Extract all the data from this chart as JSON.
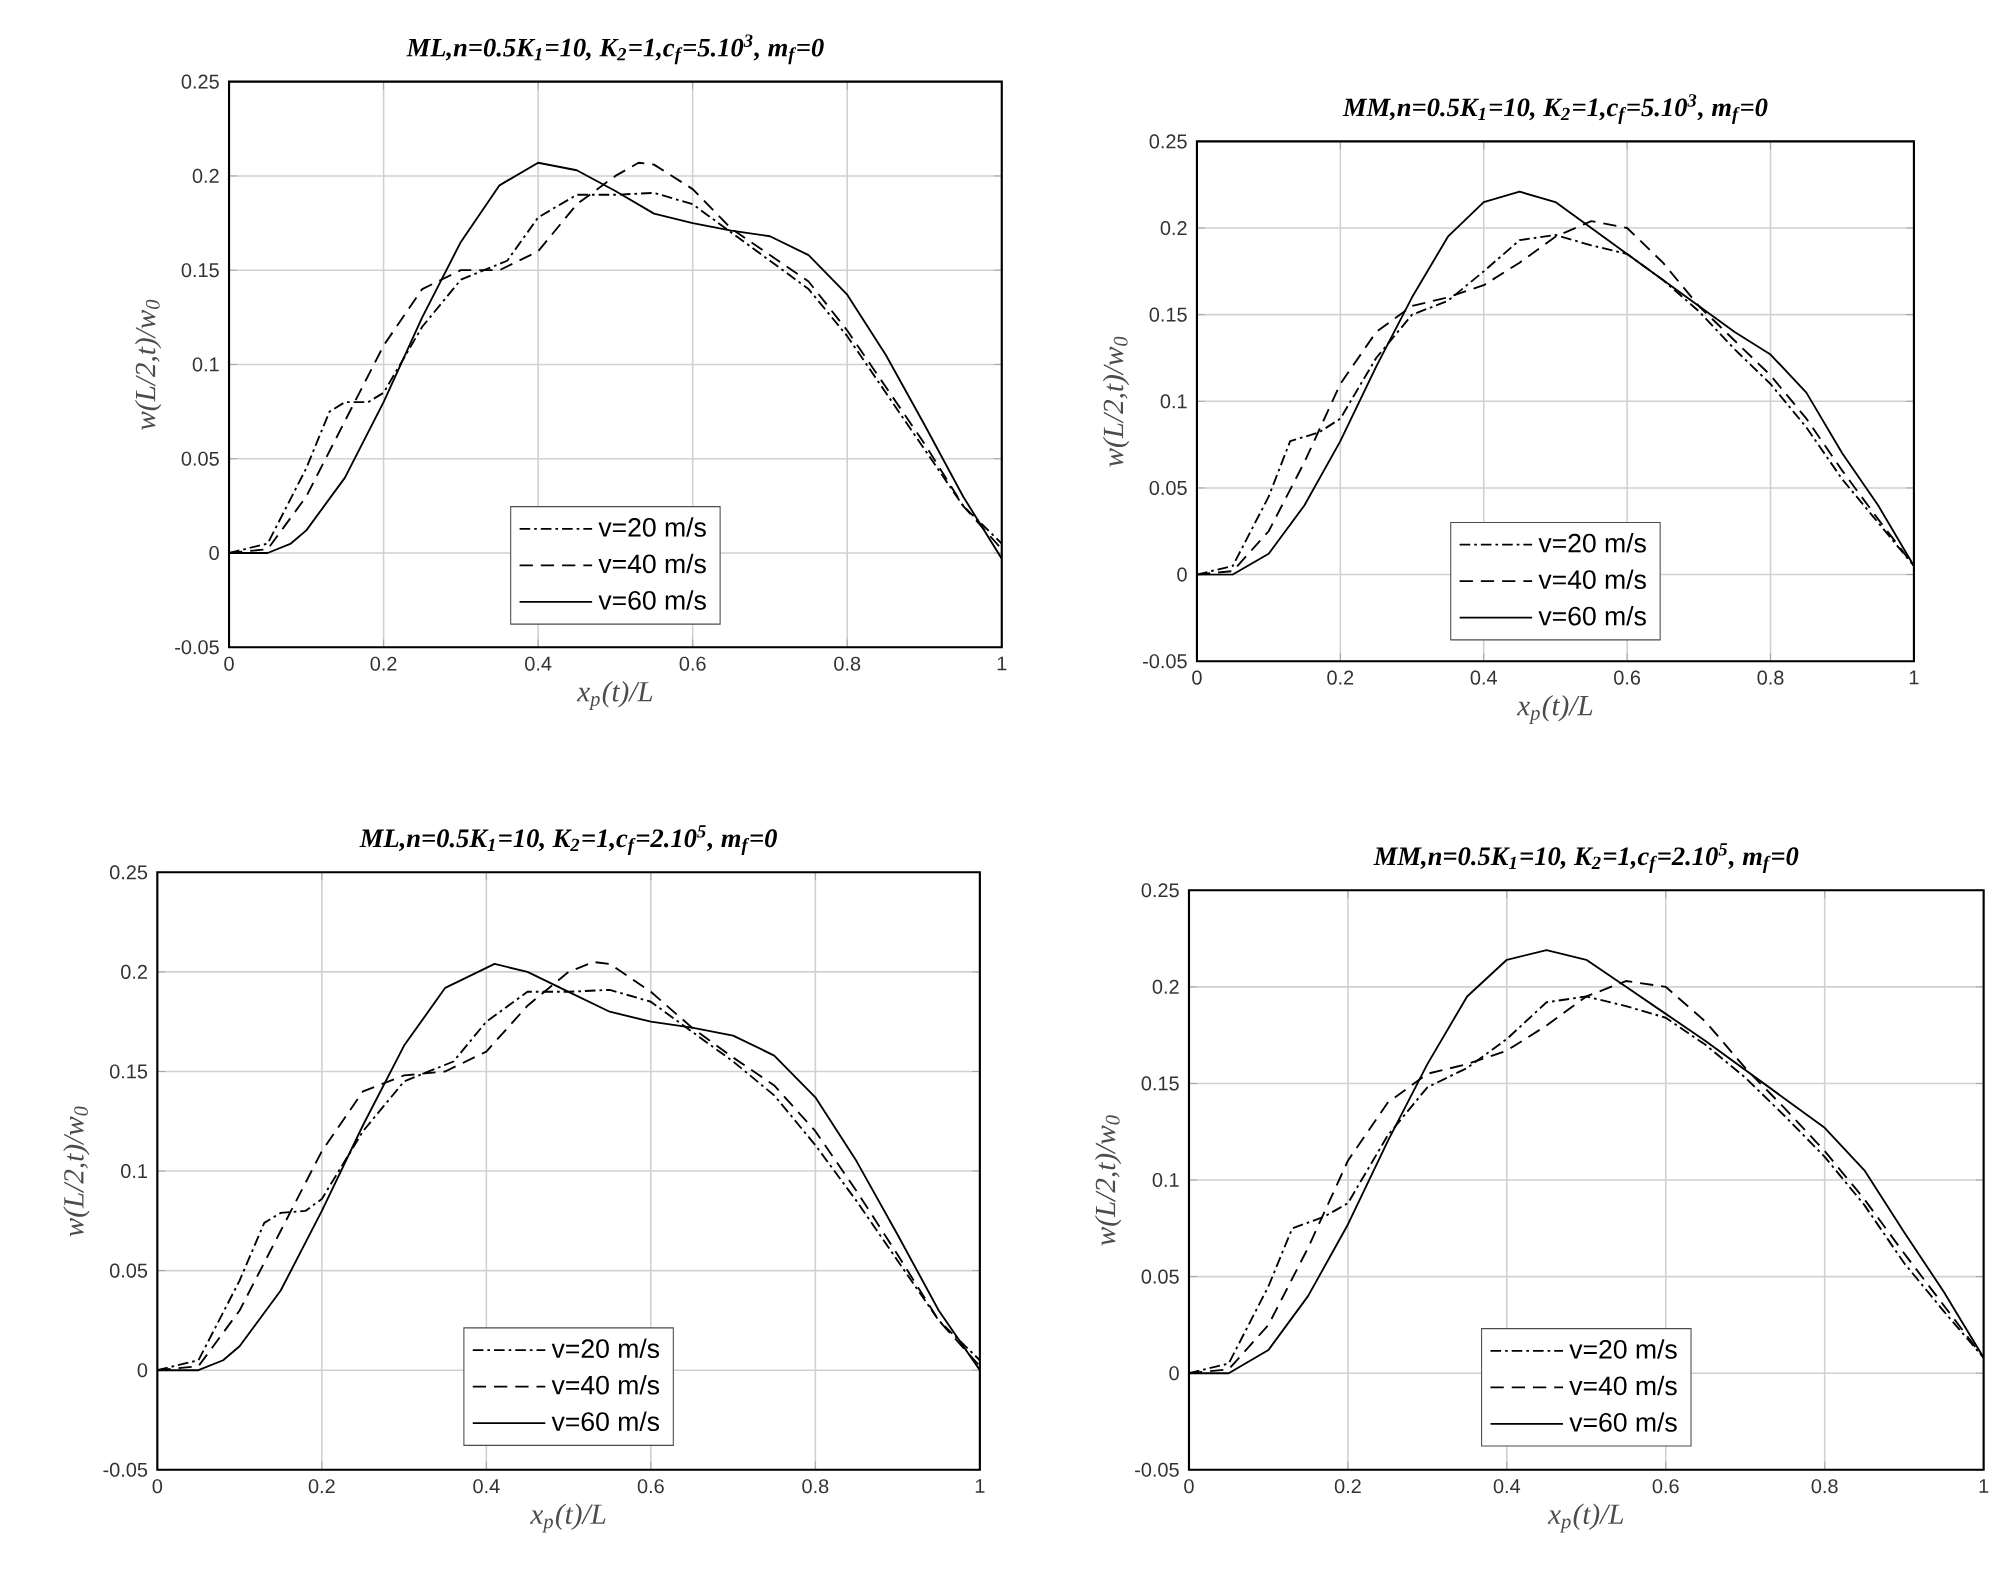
{
  "chart_data": [
    {
      "type": "line",
      "title": "ML,n=0.5K$_{1}$=10, K$_{2}$=1,c$_{f}$=5.10$^{3}$, m$_{f}$=0",
      "xlabel": "x$_{p}$(t)/L",
      "ylabel": "w(L/2,t)/w$_{0}$",
      "xlim": [
        0,
        1
      ],
      "ylim": [
        -0.05,
        0.25
      ],
      "xticks": [
        0,
        0.2,
        0.4,
        0.6,
        0.8,
        1
      ],
      "yticks": [
        -0.05,
        0,
        0.05,
        0.1,
        0.15,
        0.2,
        0.25
      ],
      "grid": true,
      "legend": "bottom",
      "series": [
        {
          "name": "v=20 m/s",
          "color": "#000000",
          "line_style": "dashdot",
          "x": [
            0,
            0.05,
            0.1,
            0.13,
            0.15,
            0.18,
            0.2,
            0.25,
            0.3,
            0.33,
            0.36,
            0.4,
            0.45,
            0.5,
            0.55,
            0.6,
            0.65,
            0.7,
            0.75,
            0.8,
            0.85,
            0.9,
            0.95,
            1
          ],
          "values": [
            0,
            0.005,
            0.045,
            0.075,
            0.08,
            0.08,
            0.085,
            0.12,
            0.145,
            0.15,
            0.155,
            0.178,
            0.19,
            0.19,
            0.191,
            0.185,
            0.17,
            0.155,
            0.14,
            0.115,
            0.085,
            0.055,
            0.025,
            0.005
          ]
        },
        {
          "name": "v=40 m/s",
          "color": "#000000",
          "line_style": "dashed",
          "x": [
            0,
            0.05,
            0.1,
            0.15,
            0.2,
            0.25,
            0.3,
            0.35,
            0.4,
            0.45,
            0.5,
            0.53,
            0.55,
            0.6,
            0.65,
            0.7,
            0.75,
            0.8,
            0.85,
            0.9,
            0.95,
            1
          ],
          "values": [
            0,
            0.002,
            0.03,
            0.07,
            0.11,
            0.14,
            0.15,
            0.15,
            0.16,
            0.185,
            0.2,
            0.207,
            0.206,
            0.193,
            0.172,
            0.158,
            0.144,
            0.118,
            0.088,
            0.058,
            0.025,
            0.002
          ]
        },
        {
          "name": "v=60 m/s",
          "color": "#000000",
          "line_style": "solid",
          "x": [
            0,
            0.05,
            0.08,
            0.1,
            0.15,
            0.2,
            0.25,
            0.3,
            0.35,
            0.4,
            0.45,
            0.5,
            0.55,
            0.6,
            0.65,
            0.7,
            0.75,
            0.8,
            0.85,
            0.9,
            0.95,
            1
          ],
          "values": [
            0,
            0,
            0.005,
            0.012,
            0.04,
            0.08,
            0.125,
            0.165,
            0.195,
            0.207,
            0.203,
            0.192,
            0.18,
            0.175,
            0.171,
            0.168,
            0.158,
            0.137,
            0.105,
            0.068,
            0.03,
            -0.003
          ]
        }
      ]
    },
    {
      "type": "line",
      "title": "MM,n=0.5K$_{1}$=10, K$_{2}$=1,c$_{f}$=5.10$^{3}$, m$_{f}$=0",
      "xlabel": "x$_{p}$(t)/L",
      "ylabel": "w(L/2,t)/w$_{0}$",
      "xlim": [
        0,
        1
      ],
      "ylim": [
        -0.05,
        0.25
      ],
      "xticks": [
        0,
        0.2,
        0.4,
        0.6,
        0.8,
        1
      ],
      "yticks": [
        -0.05,
        0,
        0.05,
        0.1,
        0.15,
        0.2,
        0.25
      ],
      "grid": true,
      "legend": "bottom",
      "series": [
        {
          "name": "v=20 m/s",
          "color": "#000000",
          "line_style": "dashdot",
          "x": [
            0,
            0.05,
            0.1,
            0.13,
            0.17,
            0.2,
            0.25,
            0.3,
            0.35,
            0.4,
            0.45,
            0.5,
            0.55,
            0.6,
            0.65,
            0.7,
            0.75,
            0.8,
            0.85,
            0.9,
            0.95,
            1
          ],
          "values": [
            0,
            0.005,
            0.045,
            0.077,
            0.082,
            0.09,
            0.125,
            0.15,
            0.158,
            0.175,
            0.193,
            0.196,
            0.19,
            0.185,
            0.17,
            0.152,
            0.13,
            0.11,
            0.085,
            0.055,
            0.03,
            0.005
          ]
        },
        {
          "name": "v=40 m/s",
          "color": "#000000",
          "line_style": "dashed",
          "x": [
            0,
            0.05,
            0.1,
            0.15,
            0.2,
            0.25,
            0.3,
            0.35,
            0.4,
            0.45,
            0.5,
            0.55,
            0.6,
            0.65,
            0.7,
            0.75,
            0.8,
            0.85,
            0.9,
            0.95,
            1
          ],
          "values": [
            0,
            0.002,
            0.025,
            0.065,
            0.11,
            0.14,
            0.155,
            0.16,
            0.167,
            0.18,
            0.195,
            0.204,
            0.2,
            0.18,
            0.155,
            0.135,
            0.115,
            0.09,
            0.06,
            0.032,
            0.005
          ]
        },
        {
          "name": "v=60 m/s",
          "color": "#000000",
          "line_style": "solid",
          "x": [
            0,
            0.05,
            0.1,
            0.15,
            0.2,
            0.25,
            0.3,
            0.35,
            0.4,
            0.45,
            0.5,
            0.55,
            0.6,
            0.65,
            0.7,
            0.75,
            0.8,
            0.85,
            0.9,
            0.95,
            1
          ],
          "values": [
            0,
            0,
            0.012,
            0.04,
            0.077,
            0.12,
            0.16,
            0.195,
            0.215,
            0.221,
            0.215,
            0.2,
            0.185,
            0.17,
            0.155,
            0.14,
            0.127,
            0.105,
            0.07,
            0.04,
            0.005
          ]
        }
      ]
    },
    {
      "type": "line",
      "title": "ML,n=0.5K$_{1}$=10, K$_{2}$=1,c$_{f}$=2.10$^{5}$, m$_{f}$=0",
      "xlabel": "x$_{p}$(t)/L",
      "ylabel": "w(L/2,t)/w$_{0}$",
      "xlim": [
        0,
        1
      ],
      "ylim": [
        -0.05,
        0.25
      ],
      "xticks": [
        0,
        0.2,
        0.4,
        0.6,
        0.8,
        1
      ],
      "yticks": [
        -0.05,
        0,
        0.05,
        0.1,
        0.15,
        0.2,
        0.25
      ],
      "grid": true,
      "legend": "bottom",
      "series": [
        {
          "name": "v=20 m/s",
          "color": "#000000",
          "line_style": "dashdot",
          "x": [
            0,
            0.05,
            0.1,
            0.13,
            0.15,
            0.18,
            0.2,
            0.25,
            0.3,
            0.33,
            0.36,
            0.4,
            0.45,
            0.5,
            0.55,
            0.6,
            0.65,
            0.7,
            0.75,
            0.8,
            0.85,
            0.9,
            0.95,
            1
          ],
          "values": [
            0,
            0.005,
            0.045,
            0.074,
            0.079,
            0.08,
            0.086,
            0.12,
            0.145,
            0.15,
            0.155,
            0.175,
            0.19,
            0.19,
            0.191,
            0.185,
            0.17,
            0.155,
            0.138,
            0.113,
            0.085,
            0.055,
            0.025,
            0.005
          ]
        },
        {
          "name": "v=40 m/s",
          "color": "#000000",
          "line_style": "dashed",
          "x": [
            0,
            0.05,
            0.1,
            0.15,
            0.2,
            0.25,
            0.3,
            0.35,
            0.4,
            0.45,
            0.5,
            0.53,
            0.55,
            0.6,
            0.65,
            0.7,
            0.75,
            0.8,
            0.85,
            0.9,
            0.95,
            1
          ],
          "values": [
            0,
            0.002,
            0.03,
            0.07,
            0.11,
            0.14,
            0.148,
            0.15,
            0.16,
            0.183,
            0.2,
            0.205,
            0.204,
            0.19,
            0.172,
            0.157,
            0.143,
            0.12,
            0.09,
            0.058,
            0.025,
            0.002
          ]
        },
        {
          "name": "v=60 m/s",
          "color": "#000000",
          "line_style": "solid",
          "x": [
            0,
            0.05,
            0.08,
            0.1,
            0.15,
            0.2,
            0.25,
            0.3,
            0.35,
            0.41,
            0.45,
            0.5,
            0.55,
            0.6,
            0.65,
            0.7,
            0.75,
            0.8,
            0.85,
            0.9,
            0.95,
            1
          ],
          "values": [
            0,
            0,
            0.005,
            0.012,
            0.04,
            0.08,
            0.123,
            0.163,
            0.192,
            0.204,
            0.2,
            0.19,
            0.18,
            0.175,
            0.172,
            0.168,
            0.158,
            0.137,
            0.105,
            0.068,
            0.03,
            0
          ]
        }
      ]
    },
    {
      "type": "line",
      "title": "MM,n=0.5K$_{1}$=10, K$_{2}$=1,c$_{f}$=2.10$^{5}$, m$_{f}$=0",
      "xlabel": "x$_{p}$(t)/L",
      "ylabel": "w(L/2,t)/w$_{0}$",
      "xlim": [
        0,
        1
      ],
      "ylim": [
        -0.05,
        0.25
      ],
      "xticks": [
        0,
        0.2,
        0.4,
        0.6,
        0.8,
        1
      ],
      "yticks": [
        -0.05,
        0,
        0.05,
        0.1,
        0.15,
        0.2,
        0.25
      ],
      "grid": true,
      "legend": "bottom",
      "series": [
        {
          "name": "v=20 m/s",
          "color": "#000000",
          "line_style": "dashdot",
          "x": [
            0,
            0.05,
            0.1,
            0.13,
            0.17,
            0.2,
            0.25,
            0.3,
            0.35,
            0.4,
            0.45,
            0.5,
            0.55,
            0.6,
            0.65,
            0.7,
            0.75,
            0.8,
            0.85,
            0.9,
            0.95,
            1
          ],
          "values": [
            0,
            0.005,
            0.045,
            0.075,
            0.081,
            0.088,
            0.123,
            0.148,
            0.158,
            0.173,
            0.192,
            0.195,
            0.19,
            0.184,
            0.17,
            0.153,
            0.133,
            0.112,
            0.087,
            0.057,
            0.032,
            0.008
          ]
        },
        {
          "name": "v=40 m/s",
          "color": "#000000",
          "line_style": "dashed",
          "x": [
            0,
            0.05,
            0.1,
            0.15,
            0.2,
            0.25,
            0.3,
            0.35,
            0.4,
            0.45,
            0.5,
            0.55,
            0.6,
            0.65,
            0.7,
            0.75,
            0.8,
            0.85,
            0.9,
            0.95,
            1
          ],
          "values": [
            0,
            0.002,
            0.025,
            0.065,
            0.11,
            0.14,
            0.155,
            0.16,
            0.167,
            0.18,
            0.195,
            0.203,
            0.2,
            0.182,
            0.158,
            0.137,
            0.115,
            0.09,
            0.062,
            0.035,
            0.008
          ]
        },
        {
          "name": "v=60 m/s",
          "color": "#000000",
          "line_style": "solid",
          "x": [
            0,
            0.05,
            0.1,
            0.15,
            0.2,
            0.25,
            0.3,
            0.35,
            0.4,
            0.45,
            0.5,
            0.55,
            0.6,
            0.65,
            0.7,
            0.75,
            0.8,
            0.85,
            0.9,
            0.95,
            1
          ],
          "values": [
            0,
            0,
            0.012,
            0.04,
            0.077,
            0.12,
            0.16,
            0.195,
            0.214,
            0.219,
            0.214,
            0.2,
            0.186,
            0.172,
            0.157,
            0.142,
            0.127,
            0.105,
            0.073,
            0.042,
            0.008
          ]
        }
      ]
    }
  ]
}
